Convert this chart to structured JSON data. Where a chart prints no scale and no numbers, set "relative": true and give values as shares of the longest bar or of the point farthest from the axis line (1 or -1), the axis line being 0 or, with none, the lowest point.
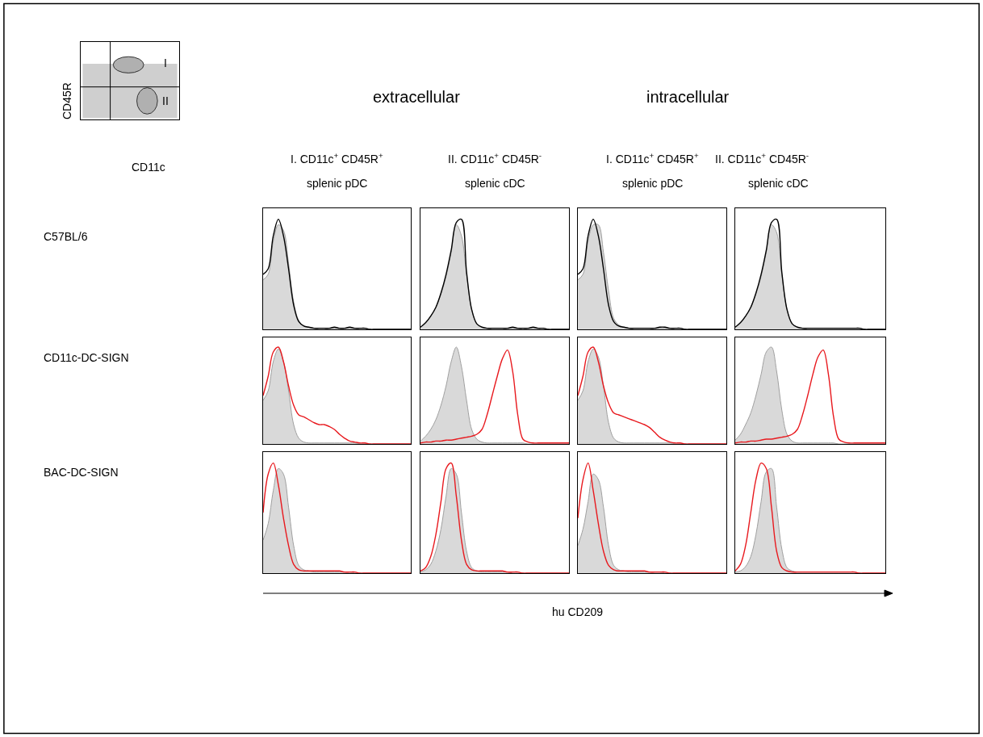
{
  "chart_data": [
    {
      "type": "other",
      "xlabel": "CD11c",
      "ylabel": "CD45R",
      "annotations": [
        "I",
        "II"
      ]
    },
    {
      "type": "area",
      "relative": true,
      "title": "I. CD11c$^{+}$ CD45R$^{+}$",
      "subtitle": "splenic pDC",
      "ylabel": "C57BL/6",
      "annotations": [
        "extracellular"
      ],
      "categories": [
        null,
        null,
        null,
        null,
        null,
        null,
        null,
        null,
        null,
        null,
        null,
        null,
        null,
        null,
        null,
        null,
        null,
        null,
        null,
        null,
        null,
        null,
        null,
        null,
        null,
        null,
        null,
        null,
        null,
        null
      ],
      "series": [
        {
          "type": "area",
          "color": "#d9d9d9",
          "values": [
            0.45,
            0.5,
            0.8,
            0.95,
            0.9,
            0.6,
            0.25,
            0.08,
            0.03,
            0.02,
            0.01,
            0.01,
            0.01,
            0.01,
            0.01,
            0.01,
            0.01,
            0.01,
            0.01,
            0.01,
            0.01,
            0,
            0,
            0,
            0,
            0,
            0,
            0,
            0,
            0
          ]
        },
        {
          "type": "line",
          "color": "#000000",
          "values": [
            0.5,
            0.55,
            0.85,
            1.0,
            0.85,
            0.55,
            0.22,
            0.07,
            0.03,
            0.02,
            0.01,
            0.01,
            0.01,
            0.01,
            0.02,
            0.01,
            0.01,
            0.02,
            0.01,
            0.01,
            0.01,
            0,
            0,
            0,
            0,
            0,
            0,
            0,
            0,
            0
          ]
        }
      ]
    },
    {
      "type": "area",
      "relative": true,
      "title": "II. CD11c$^{+}$ CD45R$^{-}$",
      "subtitle": "splenic cDC",
      "categories": [
        null,
        null,
        null,
        null,
        null,
        null,
        null,
        null,
        null,
        null,
        null,
        null,
        null,
        null,
        null,
        null,
        null,
        null,
        null,
        null,
        null,
        null,
        null,
        null,
        null,
        null,
        null,
        null,
        null,
        null
      ],
      "series": [
        {
          "type": "area",
          "color": "#d9d9d9",
          "values": [
            0.02,
            0.06,
            0.12,
            0.2,
            0.32,
            0.48,
            0.7,
            0.95,
            0.85,
            0.5,
            0.18,
            0.05,
            0.02,
            0.01,
            0.01,
            0.01,
            0.01,
            0.01,
            0.01,
            0.01,
            0.01,
            0.01,
            0.01,
            0.01,
            0.01,
            0,
            0,
            0,
            0,
            0
          ]
        },
        {
          "type": "line",
          "color": "#000000",
          "values": [
            0.02,
            0.06,
            0.12,
            0.2,
            0.33,
            0.5,
            0.72,
            0.97,
            1.0,
            0.52,
            0.18,
            0.05,
            0.02,
            0.01,
            0.01,
            0.01,
            0.01,
            0.01,
            0.02,
            0.01,
            0.01,
            0.01,
            0.02,
            0.01,
            0.01,
            0,
            0,
            0,
            0,
            0
          ]
        }
      ]
    },
    {
      "type": "area",
      "relative": true,
      "title": "I. CD11c$^{+}$ CD45R$^{+}$",
      "subtitle": "splenic pDC",
      "annotations": [
        "intracellular"
      ],
      "categories": [
        null,
        null,
        null,
        null,
        null,
        null,
        null,
        null,
        null,
        null,
        null,
        null,
        null,
        null,
        null,
        null,
        null,
        null,
        null,
        null,
        null,
        null,
        null,
        null,
        null,
        null,
        null,
        null,
        null,
        null
      ],
      "series": [
        {
          "type": "area",
          "color": "#d9d9d9",
          "values": [
            0.45,
            0.5,
            0.8,
            0.95,
            0.95,
            0.7,
            0.35,
            0.1,
            0.04,
            0.02,
            0.01,
            0.01,
            0.01,
            0.01,
            0.01,
            0.01,
            0.01,
            0.01,
            0.01,
            0.01,
            0.01,
            0,
            0,
            0,
            0,
            0,
            0,
            0,
            0,
            0
          ]
        },
        {
          "type": "line",
          "color": "#000000",
          "values": [
            0.5,
            0.55,
            0.85,
            1.0,
            0.85,
            0.55,
            0.22,
            0.07,
            0.03,
            0.02,
            0.01,
            0.01,
            0.01,
            0.01,
            0.01,
            0.01,
            0.02,
            0.02,
            0.01,
            0.01,
            0.01,
            0,
            0,
            0,
            0,
            0,
            0,
            0,
            0,
            0
          ]
        }
      ]
    },
    {
      "type": "area",
      "relative": true,
      "title": "II. CD11c$^{+}$ CD45R$^{-}$",
      "subtitle": "splenic cDC",
      "categories": [
        null,
        null,
        null,
        null,
        null,
        null,
        null,
        null,
        null,
        null,
        null,
        null,
        null,
        null,
        null,
        null,
        null,
        null,
        null,
        null,
        null,
        null,
        null,
        null,
        null,
        null,
        null,
        null,
        null,
        null
      ],
      "series": [
        {
          "type": "area",
          "color": "#d9d9d9",
          "values": [
            0.02,
            0.06,
            0.12,
            0.2,
            0.32,
            0.48,
            0.7,
            0.95,
            0.88,
            0.5,
            0.18,
            0.05,
            0.02,
            0.01,
            0.01,
            0.01,
            0.01,
            0.01,
            0.01,
            0.01,
            0.01,
            0.01,
            0.01,
            0.01,
            0.01,
            0,
            0,
            0,
            0,
            0
          ]
        },
        {
          "type": "line",
          "color": "#000000",
          "values": [
            0.02,
            0.06,
            0.12,
            0.2,
            0.33,
            0.5,
            0.72,
            0.97,
            1.0,
            0.52,
            0.18,
            0.05,
            0.02,
            0.01,
            0.01,
            0.01,
            0.01,
            0.01,
            0.01,
            0.01,
            0.01,
            0.01,
            0.01,
            0.01,
            0.01,
            0,
            0,
            0,
            0,
            0
          ]
        }
      ]
    },
    {
      "type": "area",
      "relative": true,
      "ylabel": "CD11c-DC-SIGN",
      "categories": [
        null,
        null,
        null,
        null,
        null,
        null,
        null,
        null,
        null,
        null,
        null,
        null,
        null,
        null,
        null,
        null,
        null,
        null,
        null,
        null,
        null,
        null,
        null,
        null,
        null,
        null,
        null,
        null,
        null,
        null
      ],
      "series": [
        {
          "type": "area",
          "color": "#d9d9d9",
          "values": [
            0.45,
            0.55,
            0.85,
            0.98,
            0.85,
            0.55,
            0.2,
            0.06,
            0.02,
            0.01,
            0.01,
            0.01,
            0.01,
            0.01,
            0.01,
            0.01,
            0.01,
            0.01,
            0.01,
            0,
            0,
            0,
            0,
            0,
            0,
            0,
            0,
            0,
            0,
            0
          ]
        },
        {
          "type": "line",
          "color": "#e8191e",
          "values": [
            0.5,
            0.7,
            0.95,
            1.0,
            0.85,
            0.6,
            0.4,
            0.3,
            0.28,
            0.25,
            0.22,
            0.2,
            0.2,
            0.18,
            0.15,
            0.1,
            0.06,
            0.03,
            0.02,
            0.01,
            0.01,
            0,
            0,
            0,
            0,
            0,
            0,
            0,
            0,
            0
          ]
        }
      ]
    },
    {
      "type": "area",
      "relative": true,
      "categories": [
        null,
        null,
        null,
        null,
        null,
        null,
        null,
        null,
        null,
        null,
        null,
        null,
        null,
        null,
        null,
        null,
        null,
        null,
        null,
        null,
        null,
        null,
        null,
        null,
        null,
        null,
        null,
        null,
        null,
        null
      ],
      "series": [
        {
          "type": "area",
          "color": "#d9d9d9",
          "values": [
            0.03,
            0.08,
            0.15,
            0.25,
            0.4,
            0.6,
            0.85,
            1.0,
            0.8,
            0.45,
            0.15,
            0.05,
            0.02,
            0.01,
            0.01,
            0.01,
            0.01,
            0.01,
            0.01,
            0.01,
            0.01,
            0,
            0,
            0,
            0,
            0,
            0,
            0,
            0,
            0
          ]
        },
        {
          "type": "line",
          "color": "#e8191e",
          "values": [
            0.01,
            0.02,
            0.02,
            0.03,
            0.03,
            0.04,
            0.04,
            0.05,
            0.06,
            0.07,
            0.08,
            0.1,
            0.15,
            0.3,
            0.5,
            0.7,
            0.88,
            0.97,
            0.75,
            0.3,
            0.05,
            0.02,
            0.01,
            0.01,
            0.01,
            0.01,
            0.01,
            0.01,
            0.01,
            0.01
          ]
        }
      ]
    },
    {
      "type": "area",
      "relative": true,
      "categories": [
        null,
        null,
        null,
        null,
        null,
        null,
        null,
        null,
        null,
        null,
        null,
        null,
        null,
        null,
        null,
        null,
        null,
        null,
        null,
        null,
        null,
        null,
        null,
        null,
        null,
        null,
        null,
        null,
        null,
        null
      ],
      "series": [
        {
          "type": "area",
          "color": "#d9d9d9",
          "values": [
            0.45,
            0.55,
            0.85,
            0.98,
            0.9,
            0.6,
            0.22,
            0.06,
            0.02,
            0.01,
            0.01,
            0.01,
            0.01,
            0.01,
            0.01,
            0.01,
            0.01,
            0.01,
            0.01,
            0,
            0,
            0,
            0,
            0,
            0,
            0,
            0,
            0,
            0,
            0
          ]
        },
        {
          "type": "line",
          "color": "#e8191e",
          "values": [
            0.5,
            0.7,
            0.95,
            1.0,
            0.85,
            0.6,
            0.42,
            0.32,
            0.3,
            0.28,
            0.26,
            0.24,
            0.22,
            0.2,
            0.17,
            0.12,
            0.07,
            0.04,
            0.02,
            0.01,
            0.01,
            0,
            0,
            0,
            0,
            0,
            0,
            0,
            0,
            0
          ]
        }
      ]
    },
    {
      "type": "area",
      "relative": true,
      "categories": [
        null,
        null,
        null,
        null,
        null,
        null,
        null,
        null,
        null,
        null,
        null,
        null,
        null,
        null,
        null,
        null,
        null,
        null,
        null,
        null,
        null,
        null,
        null,
        null,
        null,
        null,
        null,
        null,
        null,
        null
      ],
      "series": [
        {
          "type": "area",
          "color": "#d9d9d9",
          "values": [
            0.04,
            0.1,
            0.2,
            0.32,
            0.5,
            0.72,
            0.95,
            1.0,
            0.75,
            0.35,
            0.1,
            0.03,
            0.01,
            0.01,
            0.01,
            0.01,
            0.01,
            0.01,
            0.01,
            0.01,
            0,
            0,
            0,
            0,
            0,
            0,
            0,
            0,
            0,
            0
          ]
        },
        {
          "type": "line",
          "color": "#e8191e",
          "values": [
            0.01,
            0.02,
            0.02,
            0.03,
            0.03,
            0.04,
            0.05,
            0.05,
            0.06,
            0.07,
            0.08,
            0.1,
            0.15,
            0.3,
            0.5,
            0.72,
            0.9,
            0.97,
            0.72,
            0.28,
            0.05,
            0.02,
            0.01,
            0.01,
            0.01,
            0.01,
            0.01,
            0.01,
            0.01,
            0.01
          ]
        }
      ]
    },
    {
      "type": "area",
      "relative": true,
      "ylabel": "BAC-DC-SIGN",
      "categories": [
        null,
        null,
        null,
        null,
        null,
        null,
        null,
        null,
        null,
        null,
        null,
        null,
        null,
        null,
        null,
        null,
        null,
        null,
        null,
        null,
        null,
        null,
        null,
        null,
        null,
        null,
        null,
        null,
        null,
        null
      ],
      "series": [
        {
          "type": "area",
          "color": "#d9d9d9",
          "values": [
            0.3,
            0.45,
            0.75,
            0.95,
            0.9,
            0.6,
            0.25,
            0.07,
            0.03,
            0.02,
            0.01,
            0.01,
            0.01,
            0.01,
            0.01,
            0.01,
            0.01,
            0.01,
            0,
            0,
            0,
            0,
            0,
            0,
            0,
            0,
            0,
            0,
            0,
            0
          ]
        },
        {
          "type": "line",
          "color": "#e8191e",
          "values": [
            0.55,
            0.9,
            1.0,
            0.8,
            0.5,
            0.25,
            0.08,
            0.03,
            0.02,
            0.02,
            0.02,
            0.02,
            0.02,
            0.02,
            0.02,
            0.02,
            0.01,
            0.01,
            0.01,
            0,
            0,
            0,
            0,
            0,
            0,
            0,
            0,
            0,
            0,
            0
          ]
        }
      ]
    },
    {
      "type": "area",
      "relative": true,
      "xlabel": "hu CD209",
      "categories": [
        null,
        null,
        null,
        null,
        null,
        null,
        null,
        null,
        null,
        null,
        null,
        null,
        null,
        null,
        null,
        null,
        null,
        null,
        null,
        null,
        null,
        null,
        null,
        null,
        null,
        null,
        null,
        null,
        null,
        null
      ],
      "series": [
        {
          "type": "area",
          "color": "#d9d9d9",
          "values": [
            0.01,
            0.03,
            0.08,
            0.2,
            0.4,
            0.7,
            0.95,
            0.9,
            0.55,
            0.2,
            0.05,
            0.02,
            0.01,
            0.01,
            0.01,
            0.01,
            0.01,
            0.01,
            0,
            0,
            0,
            0,
            0,
            0,
            0,
            0,
            0,
            0,
            0,
            0
          ]
        },
        {
          "type": "line",
          "color": "#e8191e",
          "values": [
            0.02,
            0.05,
            0.15,
            0.35,
            0.65,
            0.95,
            1.0,
            0.7,
            0.3,
            0.08,
            0.03,
            0.02,
            0.02,
            0.02,
            0.02,
            0.02,
            0.02,
            0.01,
            0.01,
            0.01,
            0,
            0,
            0,
            0,
            0,
            0,
            0,
            0,
            0,
            0
          ]
        }
      ]
    },
    {
      "type": "area",
      "relative": true,
      "categories": [
        null,
        null,
        null,
        null,
        null,
        null,
        null,
        null,
        null,
        null,
        null,
        null,
        null,
        null,
        null,
        null,
        null,
        null,
        null,
        null,
        null,
        null,
        null,
        null,
        null,
        null,
        null,
        null,
        null,
        null
      ],
      "series": [
        {
          "type": "area",
          "color": "#d9d9d9",
          "values": [
            0.25,
            0.4,
            0.65,
            0.9,
            0.85,
            0.6,
            0.25,
            0.07,
            0.03,
            0.02,
            0.01,
            0.01,
            0.01,
            0.01,
            0.01,
            0.01,
            0.01,
            0,
            0,
            0,
            0,
            0,
            0,
            0,
            0,
            0,
            0,
            0,
            0,
            0
          ]
        },
        {
          "type": "line",
          "color": "#e8191e",
          "values": [
            0.5,
            0.85,
            1.0,
            0.75,
            0.45,
            0.2,
            0.07,
            0.03,
            0.02,
            0.02,
            0.02,
            0.02,
            0.02,
            0.02,
            0.01,
            0.01,
            0.01,
            0.01,
            0,
            0,
            0,
            0,
            0,
            0,
            0,
            0,
            0,
            0,
            0,
            0
          ]
        }
      ]
    },
    {
      "type": "area",
      "relative": true,
      "categories": [
        null,
        null,
        null,
        null,
        null,
        null,
        null,
        null,
        null,
        null,
        null,
        null,
        null,
        null,
        null,
        null,
        null,
        null,
        null,
        null,
        null,
        null,
        null,
        null,
        null,
        null,
        null,
        null,
        null,
        null
      ],
      "series": [
        {
          "type": "area",
          "color": "#d9d9d9",
          "values": [
            0.01,
            0.02,
            0.06,
            0.15,
            0.35,
            0.65,
            0.92,
            0.95,
            0.6,
            0.22,
            0.05,
            0.02,
            0.01,
            0.01,
            0.01,
            0.01,
            0.01,
            0.01,
            0.01,
            0.01,
            0.01,
            0.01,
            0.01,
            0.01,
            0,
            0,
            0,
            0,
            0,
            0
          ]
        },
        {
          "type": "line",
          "color": "#e8191e",
          "values": [
            0.02,
            0.08,
            0.25,
            0.55,
            0.85,
            1.0,
            0.95,
            0.6,
            0.2,
            0.05,
            0.02,
            0.01,
            0.01,
            0.01,
            0.01,
            0.01,
            0.01,
            0.01,
            0.01,
            0.01,
            0.01,
            0.01,
            0.01,
            0.01,
            0,
            0,
            0,
            0,
            0,
            0
          ]
        }
      ]
    }
  ]
}
